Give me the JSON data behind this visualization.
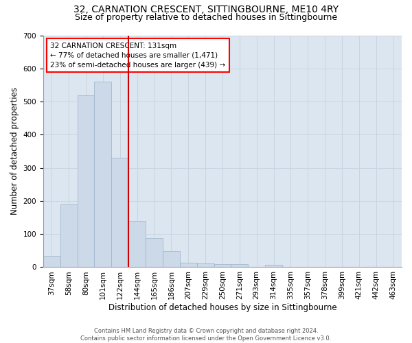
{
  "title_line1": "32, CARNATION CRESCENT, SITTINGBOURNE, ME10 4RY",
  "title_line2": "Size of property relative to detached houses in Sittingbourne",
  "xlabel": "Distribution of detached houses by size in Sittingbourne",
  "ylabel": "Number of detached properties",
  "footer": "Contains HM Land Registry data © Crown copyright and database right 2024.\nContains public sector information licensed under the Open Government Licence v3.0.",
  "bar_labels": [
    "37sqm",
    "58sqm",
    "80sqm",
    "101sqm",
    "122sqm",
    "144sqm",
    "165sqm",
    "186sqm",
    "207sqm",
    "229sqm",
    "250sqm",
    "271sqm",
    "293sqm",
    "314sqm",
    "335sqm",
    "357sqm",
    "378sqm",
    "399sqm",
    "421sqm",
    "442sqm",
    "463sqm"
  ],
  "bar_values": [
    35,
    190,
    518,
    560,
    330,
    140,
    87,
    48,
    14,
    11,
    10,
    10,
    0,
    7,
    0,
    0,
    0,
    0,
    0,
    0,
    0
  ],
  "bar_color": "#ccd9e8",
  "bar_edge_color": "#9ab0c8",
  "grid_color": "#c8d4e0",
  "background_color": "#dce6f0",
  "vline_color": "#cc0000",
  "vline_x_index": 4.5,
  "annotation_text": "32 CARNATION CRESCENT: 131sqm\n← 77% of detached houses are smaller (1,471)\n23% of semi-detached houses are larger (439) →",
  "ylim": [
    0,
    700
  ],
  "yticks": [
    0,
    100,
    200,
    300,
    400,
    500,
    600,
    700
  ],
  "title_fontsize": 10,
  "subtitle_fontsize": 9,
  "xlabel_fontsize": 8.5,
  "ylabel_fontsize": 8.5,
  "tick_fontsize": 7.5,
  "annotation_fontsize": 7.5,
  "footer_fontsize": 6
}
